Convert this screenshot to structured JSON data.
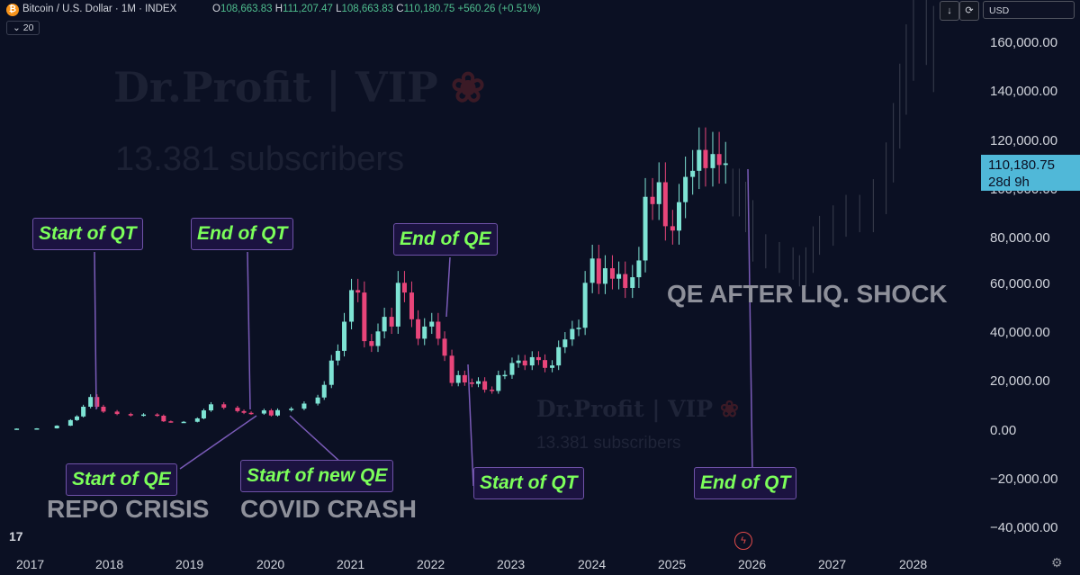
{
  "header": {
    "symbol_icon": "bitcoin-icon",
    "symbol_title": "Bitcoin / U.S. Dollar · 1M · INDEX",
    "ohlc": {
      "o_label": "O",
      "o": "108,663.83",
      "h_label": "H",
      "h": "111,207.47",
      "l_label": "L",
      "l": "108,663.83",
      "c_label": "C",
      "c": "110,180.75",
      "change": "+560.26 (+0.51%)"
    },
    "indicator_badge": "20",
    "currency": "USD",
    "download_icon": "↓",
    "sync_icon": "⟳"
  },
  "watermarks": {
    "brand": "Dr.Profit | VIP",
    "subscribers": "13.381 subscribers",
    "rose_icon": "rose-icon"
  },
  "annotations": {
    "start_qt_2017": "Start of QT",
    "end_qt_2019": "End of QT",
    "end_qe_2022": "End of QE",
    "start_qe_2019": "Start of QE",
    "start_new_qe": "Start of new QE",
    "start_qt_2022": "Start of QT",
    "end_qt_2025": "End of QT",
    "repo_crisis": "REPO CRISIS",
    "covid_crash": "COVID CRASH",
    "qe_after_shock": "QE AFTER LIQ. SHOCK"
  },
  "price_tag": {
    "price": "110,180.75",
    "countdown": "28d 9h"
  },
  "footer": {
    "logo": "17",
    "flash_icon": "lightning-icon",
    "settings_icon": "gear-icon"
  },
  "colors": {
    "up": "#7ee3d4",
    "down": "#e8457a",
    "background": "#0b1023",
    "annotation_text": "#7cff5a",
    "price_tag": "#50b8d8",
    "projection": "#3a3f4f"
  },
  "chart_data": {
    "type": "candlestick",
    "title": "Bitcoin / U.S. Dollar · 1M · INDEX",
    "x_ticks": [
      "2017",
      "2018",
      "2019",
      "2020",
      "2021",
      "2022",
      "2023",
      "2024",
      "2025",
      "2026",
      "2027",
      "2028"
    ],
    "y_ticks": [
      "160,000.00",
      "140,000.00",
      "120,000.00",
      "100,000.00",
      "80,000.00",
      "60,000.00",
      "40,000.00",
      "20,000.00",
      "0.00",
      "−20,000.00",
      "−40,000.00"
    ],
    "ylim": [
      -45000,
      172000
    ],
    "xlim": [
      2016.5,
      2028.75
    ],
    "last_price": 110180.75,
    "series": [
      {
        "name": "BTCUSD",
        "kind": "actual",
        "points": [
          [
            2017.0,
            1000
          ],
          [
            2017.25,
            1100
          ],
          [
            2017.5,
            2200
          ],
          [
            2017.67,
            4500
          ],
          [
            2017.75,
            6000
          ],
          [
            2017.83,
            10000
          ],
          [
            2017.92,
            14000
          ],
          [
            2018.0,
            10000
          ],
          [
            2018.08,
            8000
          ],
          [
            2018.25,
            7000
          ],
          [
            2018.42,
            6400
          ],
          [
            2018.58,
            6800
          ],
          [
            2018.75,
            6300
          ],
          [
            2018.83,
            4000
          ],
          [
            2018.92,
            3700
          ],
          [
            2019.08,
            3800
          ],
          [
            2019.25,
            5200
          ],
          [
            2019.33,
            8500
          ],
          [
            2019.42,
            11000
          ],
          [
            2019.58,
            9600
          ],
          [
            2019.75,
            8200
          ],
          [
            2019.83,
            7500
          ],
          [
            2019.92,
            7200
          ],
          [
            2020.08,
            8500
          ],
          [
            2020.17,
            6400
          ],
          [
            2020.25,
            8600
          ],
          [
            2020.42,
            9200
          ],
          [
            2020.58,
            11300
          ],
          [
            2020.75,
            13800
          ],
          [
            2020.83,
            19000
          ],
          [
            2020.92,
            29000
          ],
          [
            2021.0,
            33000
          ],
          [
            2021.08,
            45000
          ],
          [
            2021.17,
            58000
          ],
          [
            2021.25,
            57000
          ],
          [
            2021.33,
            37000
          ],
          [
            2021.42,
            35000
          ],
          [
            2021.5,
            41000
          ],
          [
            2021.58,
            47000
          ],
          [
            2021.67,
            43000
          ],
          [
            2021.75,
            61000
          ],
          [
            2021.83,
            57000
          ],
          [
            2021.92,
            46000
          ],
          [
            2022.0,
            38000
          ],
          [
            2022.08,
            43000
          ],
          [
            2022.17,
            45000
          ],
          [
            2022.25,
            38000
          ],
          [
            2022.33,
            31000
          ],
          [
            2022.42,
            19800
          ],
          [
            2022.5,
            23000
          ],
          [
            2022.58,
            20000
          ],
          [
            2022.67,
            19400
          ],
          [
            2022.75,
            20500
          ],
          [
            2022.83,
            17000
          ],
          [
            2022.92,
            16500
          ],
          [
            2023.0,
            23000
          ],
          [
            2023.08,
            23100
          ],
          [
            2023.17,
            28000
          ],
          [
            2023.25,
            29000
          ],
          [
            2023.33,
            27000
          ],
          [
            2023.42,
            30400
          ],
          [
            2023.5,
            29200
          ],
          [
            2023.58,
            26000
          ],
          [
            2023.67,
            27000
          ],
          [
            2023.75,
            34500
          ],
          [
            2023.83,
            37700
          ],
          [
            2023.92,
            42000
          ],
          [
            2024.0,
            42500
          ],
          [
            2024.08,
            61000
          ],
          [
            2024.17,
            71000
          ],
          [
            2024.25,
            60600
          ],
          [
            2024.33,
            67000
          ],
          [
            2024.42,
            62700
          ],
          [
            2024.5,
            64600
          ],
          [
            2024.58,
            58900
          ],
          [
            2024.67,
            63300
          ],
          [
            2024.75,
            70200
          ],
          [
            2024.83,
            96400
          ],
          [
            2024.92,
            93400
          ],
          [
            2025.0,
            102400
          ],
          [
            2025.08,
            84300
          ],
          [
            2025.17,
            82500
          ],
          [
            2025.25,
            94200
          ],
          [
            2025.33,
            104600
          ],
          [
            2025.42,
            107100
          ],
          [
            2025.5,
            115700
          ],
          [
            2025.58,
            108200
          ],
          [
            2025.67,
            114000
          ],
          [
            2025.75,
            109500
          ],
          [
            2025.83,
            110180.75
          ]
        ]
      },
      {
        "name": "Projection",
        "kind": "projection",
        "points": [
          [
            2025.92,
            100000
          ],
          [
            2026.0,
            95000
          ],
          [
            2026.08,
            88000
          ],
          [
            2026.17,
            75000
          ],
          [
            2026.33,
            72000
          ],
          [
            2026.5,
            70000
          ],
          [
            2026.67,
            67000
          ],
          [
            2026.75,
            64000
          ],
          [
            2026.83,
            70000
          ],
          [
            2026.92,
            78000
          ],
          [
            2027.0,
            82000
          ],
          [
            2027.17,
            86000
          ],
          [
            2027.33,
            90000
          ],
          [
            2027.5,
            88000
          ],
          [
            2027.67,
            96000
          ],
          [
            2027.83,
            110000
          ],
          [
            2027.92,
            125000
          ],
          [
            2028.0,
            140000
          ],
          [
            2028.08,
            155000
          ],
          [
            2028.17,
            165000
          ],
          [
            2028.33,
            162000
          ],
          [
            2028.42,
            150000
          ]
        ]
      }
    ]
  }
}
